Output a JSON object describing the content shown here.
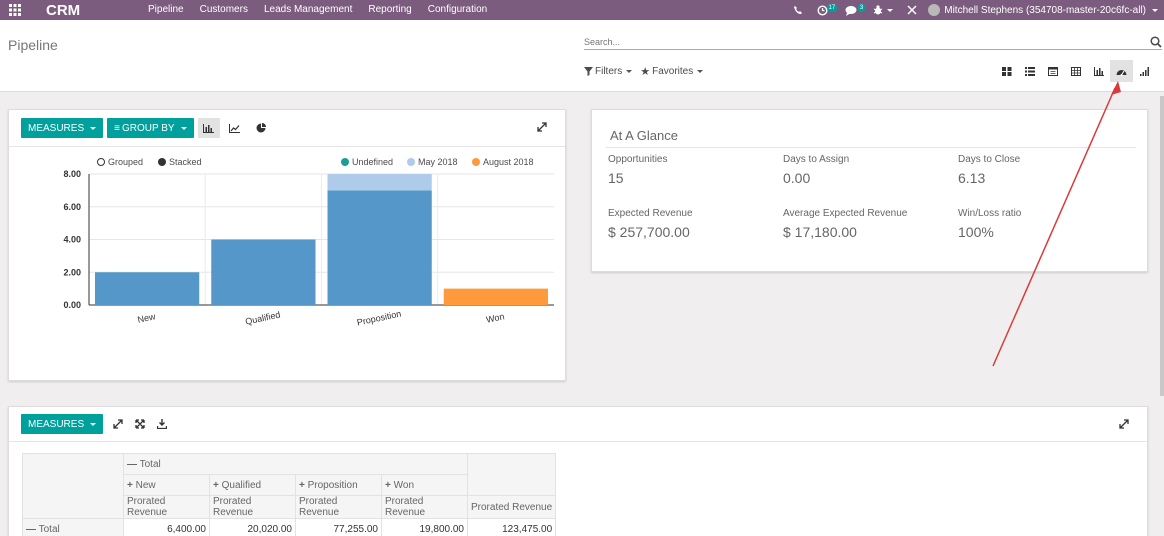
{
  "navbar": {
    "brand": "CRM",
    "menu": [
      "Pipeline",
      "Customers",
      "Leads Management",
      "Reporting",
      "Configuration"
    ],
    "activity_count": "17",
    "message_count": "3",
    "user": "Mitchell Stephens (354708-master-20c6fc-all)",
    "color": "#7c5c7e"
  },
  "control": {
    "breadcrumb": "Pipeline",
    "search_placeholder": "Search...",
    "filters_label": "Filters",
    "favorites_label": "Favorites",
    "views": [
      "kanban-icon",
      "list-icon",
      "calendar-icon",
      "pivot-icon",
      "graph-icon",
      "dashboard-icon",
      "cohort-icon"
    ],
    "active_view": "dashboard-icon"
  },
  "graph_panel": {
    "measures_label": "MEASURES",
    "groupby_label": "GROUP BY",
    "mode_grouped": "Grouped",
    "mode_stacked": "Stacked"
  },
  "chart_data": {
    "type": "bar",
    "stacked": true,
    "categories": [
      "New",
      "Qualified",
      "Proposition",
      "Won"
    ],
    "series": [
      {
        "name": "Undefined",
        "color": "#5497c8",
        "values": [
          2,
          4,
          7,
          0
        ]
      },
      {
        "name": "May 2018",
        "color": "#aecbe9",
        "values": [
          0,
          0,
          1,
          0
        ]
      },
      {
        "name": "August 2018",
        "color": "#ff9a3c",
        "values": [
          0,
          0,
          0,
          1
        ]
      }
    ],
    "yticks": [
      "8.00",
      "6.00",
      "4.00",
      "2.00",
      "0.00"
    ],
    "ylim": [
      0,
      8
    ],
    "legend_placement": "top-right",
    "grid": true
  },
  "glance": {
    "title": "At A Glance",
    "items": [
      {
        "label": "Opportunities",
        "value": "15"
      },
      {
        "label": "Days to Assign",
        "value": "0.00"
      },
      {
        "label": "Days to Close",
        "value": "6.13"
      },
      {
        "label": "Expected Revenue",
        "value": "$ 257,700.00"
      },
      {
        "label": "Average Expected Revenue",
        "value": "$ 17,180.00"
      },
      {
        "label": "Win/Loss ratio",
        "value": "100%"
      }
    ]
  },
  "pivot": {
    "measures_label": "MEASURES",
    "total_header": "Total",
    "columns": [
      "New",
      "Qualified",
      "Proposition",
      "Won"
    ],
    "measure": "Prorated Revenue",
    "row_label": "Total",
    "values": [
      "6,400.00",
      "20,020.00",
      "77,255.00",
      "19,800.00",
      "123,475.00"
    ]
  }
}
